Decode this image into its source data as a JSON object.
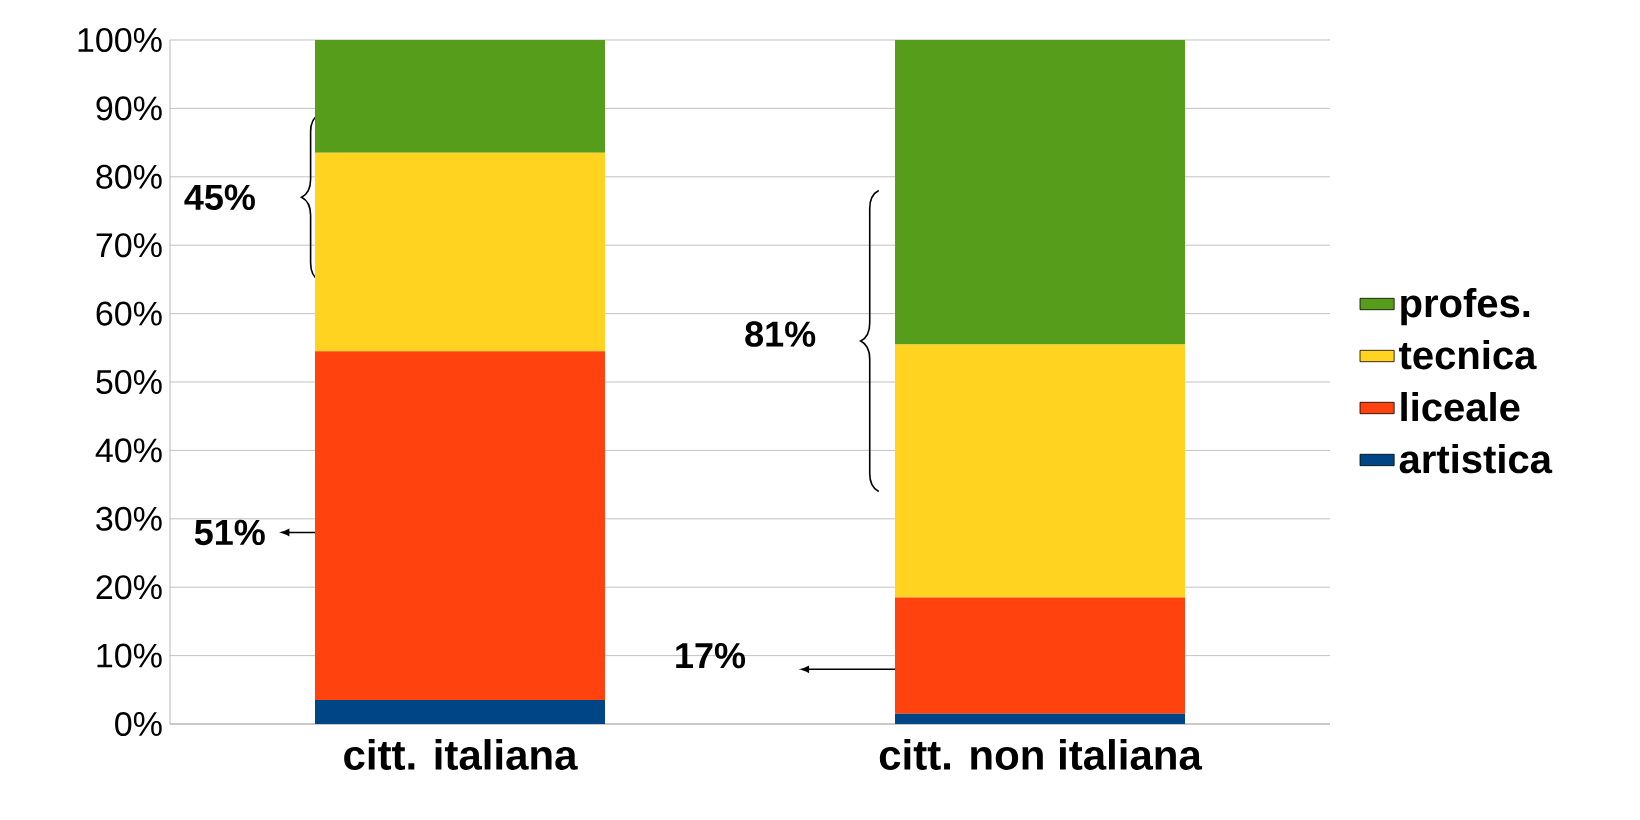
{
  "chart_data": {
    "type": "bar",
    "stacked": true,
    "categories": [
      "citt. italiana",
      "citt. non italiana"
    ],
    "series": [
      {
        "name": "artistica",
        "color": "#004586",
        "values": [
          3.5,
          1.5
        ]
      },
      {
        "name": "liceale",
        "color": "#ff420e",
        "values": [
          51,
          17
        ]
      },
      {
        "name": "tecnica",
        "color": "#ffd320",
        "values": [
          29,
          37
        ]
      },
      {
        "name": "profes.",
        "color": "#579d1c",
        "values": [
          16.5,
          44.5
        ]
      }
    ],
    "ylim": [
      0,
      100
    ],
    "yticks": [
      {
        "value": 0,
        "label": "0%"
      },
      {
        "value": 10,
        "label": "10%"
      },
      {
        "value": 20,
        "label": "20%"
      },
      {
        "value": 30,
        "label": "30%"
      },
      {
        "value": 40,
        "label": "40%"
      },
      {
        "value": 50,
        "label": "50%"
      },
      {
        "value": 60,
        "label": "60%"
      },
      {
        "value": 70,
        "label": "70%"
      },
      {
        "value": 80,
        "label": "80%"
      },
      {
        "value": 90,
        "label": "90%"
      },
      {
        "value": 100,
        "label": "100%"
      }
    ],
    "grid": "y",
    "legend": "right",
    "annotations": [
      "45%",
      "51%",
      "81%",
      "17%"
    ]
  }
}
